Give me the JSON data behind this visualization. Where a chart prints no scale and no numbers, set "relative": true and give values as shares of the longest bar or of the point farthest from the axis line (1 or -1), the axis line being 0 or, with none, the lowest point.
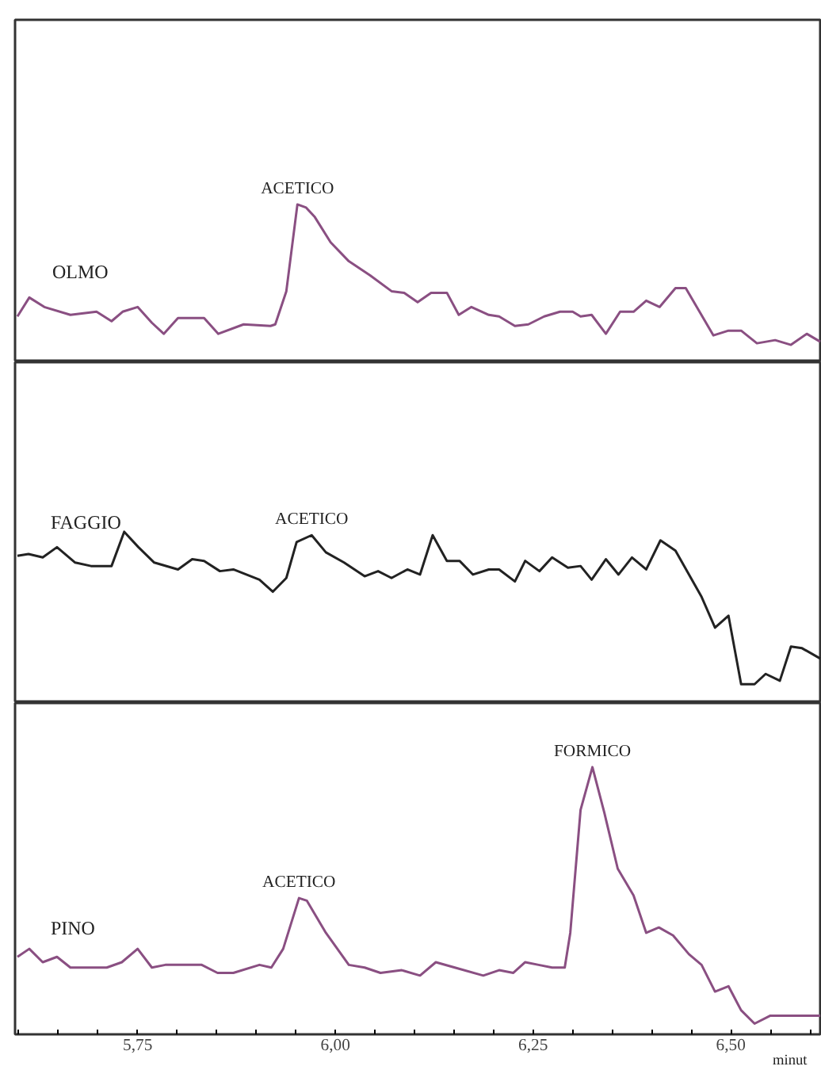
{
  "chart_data": [
    {
      "type": "line",
      "relative": true,
      "xlim": [
        5.595,
        6.615
      ],
      "tick_labels": false,
      "grid": false,
      "marker": "none",
      "line_style": "solid",
      "annotations": [
        {
          "text": "ACETICO",
          "x": 5.952,
          "y": 1.0
        }
      ],
      "series": [
        {
          "name": "OLMO",
          "color": "#8a4f82",
          "x": [
            5.598,
            5.613,
            5.632,
            5.665,
            5.698,
            5.717,
            5.731,
            5.75,
            5.768,
            5.783,
            5.801,
            5.834,
            5.852,
            5.884,
            5.918,
            5.924,
            5.938,
            5.952,
            5.963,
            5.974,
            5.994,
            6.017,
            6.044,
            6.071,
            6.087,
            6.104,
            6.121,
            6.141,
            6.156,
            6.172,
            6.194,
            6.207,
            6.227,
            6.244,
            6.264,
            6.284,
            6.3,
            6.31,
            6.324,
            6.342,
            6.36,
            6.377,
            6.393,
            6.41,
            6.43,
            6.443,
            6.478,
            6.497,
            6.513,
            6.533,
            6.556,
            6.576,
            6.596,
            6.613
          ],
          "values": [
            0.29,
            0.41,
            0.35,
            0.3,
            0.32,
            0.26,
            0.32,
            0.35,
            0.25,
            0.18,
            0.28,
            0.28,
            0.18,
            0.24,
            0.23,
            0.24,
            0.45,
            1.0,
            0.98,
            0.92,
            0.76,
            0.64,
            0.55,
            0.45,
            0.44,
            0.38,
            0.44,
            0.44,
            0.3,
            0.35,
            0.3,
            0.29,
            0.23,
            0.24,
            0.29,
            0.32,
            0.32,
            0.29,
            0.3,
            0.18,
            0.32,
            0.32,
            0.39,
            0.35,
            0.47,
            0.47,
            0.17,
            0.2,
            0.2,
            0.12,
            0.14,
            0.11,
            0.18,
            0.13
          ]
        }
      ]
    },
    {
      "type": "line",
      "relative": true,
      "xlim": [
        5.595,
        6.615
      ],
      "tick_labels": false,
      "grid": false,
      "marker": "none",
      "line_style": "solid",
      "annotations": [
        {
          "text": "ACETICO",
          "x": 5.97,
          "y": 0.98
        }
      ],
      "series": [
        {
          "name": "FAGGIO",
          "color": "#222222",
          "x": [
            5.598,
            5.612,
            5.63,
            5.648,
            5.671,
            5.691,
            5.717,
            5.733,
            5.751,
            5.771,
            5.801,
            5.819,
            5.834,
            5.854,
            5.871,
            5.904,
            5.921,
            5.938,
            5.951,
            5.97,
            5.988,
            6.011,
            6.037,
            6.054,
            6.071,
            6.091,
            6.107,
            6.123,
            6.141,
            6.157,
            6.174,
            6.194,
            6.207,
            6.227,
            6.24,
            6.258,
            6.274,
            6.294,
            6.31,
            6.324,
            6.342,
            6.358,
            6.375,
            6.393,
            6.411,
            6.43,
            6.463,
            6.48,
            6.497,
            6.513,
            6.53,
            6.544,
            6.562,
            6.576,
            6.59,
            6.613
          ],
          "values": [
            0.86,
            0.87,
            0.85,
            0.91,
            0.82,
            0.8,
            0.8,
            1.0,
            0.91,
            0.82,
            0.78,
            0.84,
            0.83,
            0.77,
            0.78,
            0.72,
            0.65,
            0.73,
            0.94,
            0.98,
            0.88,
            0.82,
            0.74,
            0.77,
            0.73,
            0.78,
            0.75,
            0.98,
            0.83,
            0.83,
            0.75,
            0.78,
            0.78,
            0.71,
            0.83,
            0.77,
            0.85,
            0.79,
            0.8,
            0.72,
            0.84,
            0.75,
            0.85,
            0.78,
            0.95,
            0.89,
            0.62,
            0.44,
            0.51,
            0.11,
            0.11,
            0.17,
            0.13,
            0.33,
            0.32,
            0.26
          ]
        }
      ]
    },
    {
      "type": "line",
      "relative": true,
      "xlim": [
        5.595,
        6.615
      ],
      "tick_labels": "x",
      "grid": false,
      "marker": "none",
      "line_style": "solid",
      "xlabel": "minut",
      "xticks": [
        {
          "value": 5.6,
          "label": null
        },
        {
          "value": 5.65,
          "label": null
        },
        {
          "value": 5.7,
          "label": null
        },
        {
          "value": 5.75,
          "label": "5,75"
        },
        {
          "value": 5.8,
          "label": null
        },
        {
          "value": 5.85,
          "label": null
        },
        {
          "value": 5.9,
          "label": null
        },
        {
          "value": 5.95,
          "label": null
        },
        {
          "value": 6.0,
          "label": "6,00"
        },
        {
          "value": 6.05,
          "label": null
        },
        {
          "value": 6.1,
          "label": null
        },
        {
          "value": 6.15,
          "label": null
        },
        {
          "value": 6.2,
          "label": null
        },
        {
          "value": 6.25,
          "label": "6,25"
        },
        {
          "value": 6.3,
          "label": null
        },
        {
          "value": 6.35,
          "label": null
        },
        {
          "value": 6.4,
          "label": null
        },
        {
          "value": 6.45,
          "label": null
        },
        {
          "value": 6.5,
          "label": "6,50"
        },
        {
          "value": 6.55,
          "label": null
        },
        {
          "value": 6.6,
          "label": null
        }
      ],
      "annotations": [
        {
          "text": "ACETICO",
          "x": 5.954,
          "y": 0.51
        },
        {
          "text": "FORMICO",
          "x": 6.325,
          "y": 1.0
        }
      ],
      "series": [
        {
          "name": "PINO",
          "color": "#8a4f82",
          "x": [
            5.598,
            5.613,
            5.63,
            5.648,
            5.665,
            5.711,
            5.73,
            5.75,
            5.768,
            5.785,
            5.831,
            5.851,
            5.871,
            5.904,
            5.919,
            5.934,
            5.954,
            5.964,
            5.988,
            6.017,
            6.037,
            6.057,
            6.084,
            6.107,
            6.127,
            6.151,
            6.187,
            6.207,
            6.225,
            6.24,
            6.257,
            6.274,
            6.29,
            6.297,
            6.31,
            6.325,
            6.34,
            6.357,
            6.377,
            6.393,
            6.409,
            6.427,
            6.447,
            6.463,
            6.48,
            6.497,
            6.513,
            6.53,
            6.55,
            6.613
          ],
          "values": [
            0.29,
            0.32,
            0.27,
            0.29,
            0.25,
            0.25,
            0.27,
            0.32,
            0.25,
            0.26,
            0.26,
            0.23,
            0.23,
            0.26,
            0.25,
            0.32,
            0.51,
            0.5,
            0.38,
            0.26,
            0.25,
            0.23,
            0.24,
            0.22,
            0.27,
            0.25,
            0.22,
            0.24,
            0.23,
            0.27,
            0.26,
            0.25,
            0.25,
            0.38,
            0.84,
            1.0,
            0.83,
            0.62,
            0.52,
            0.38,
            0.4,
            0.37,
            0.3,
            0.26,
            0.16,
            0.18,
            0.09,
            0.04,
            0.07,
            0.07
          ]
        }
      ]
    }
  ]
}
